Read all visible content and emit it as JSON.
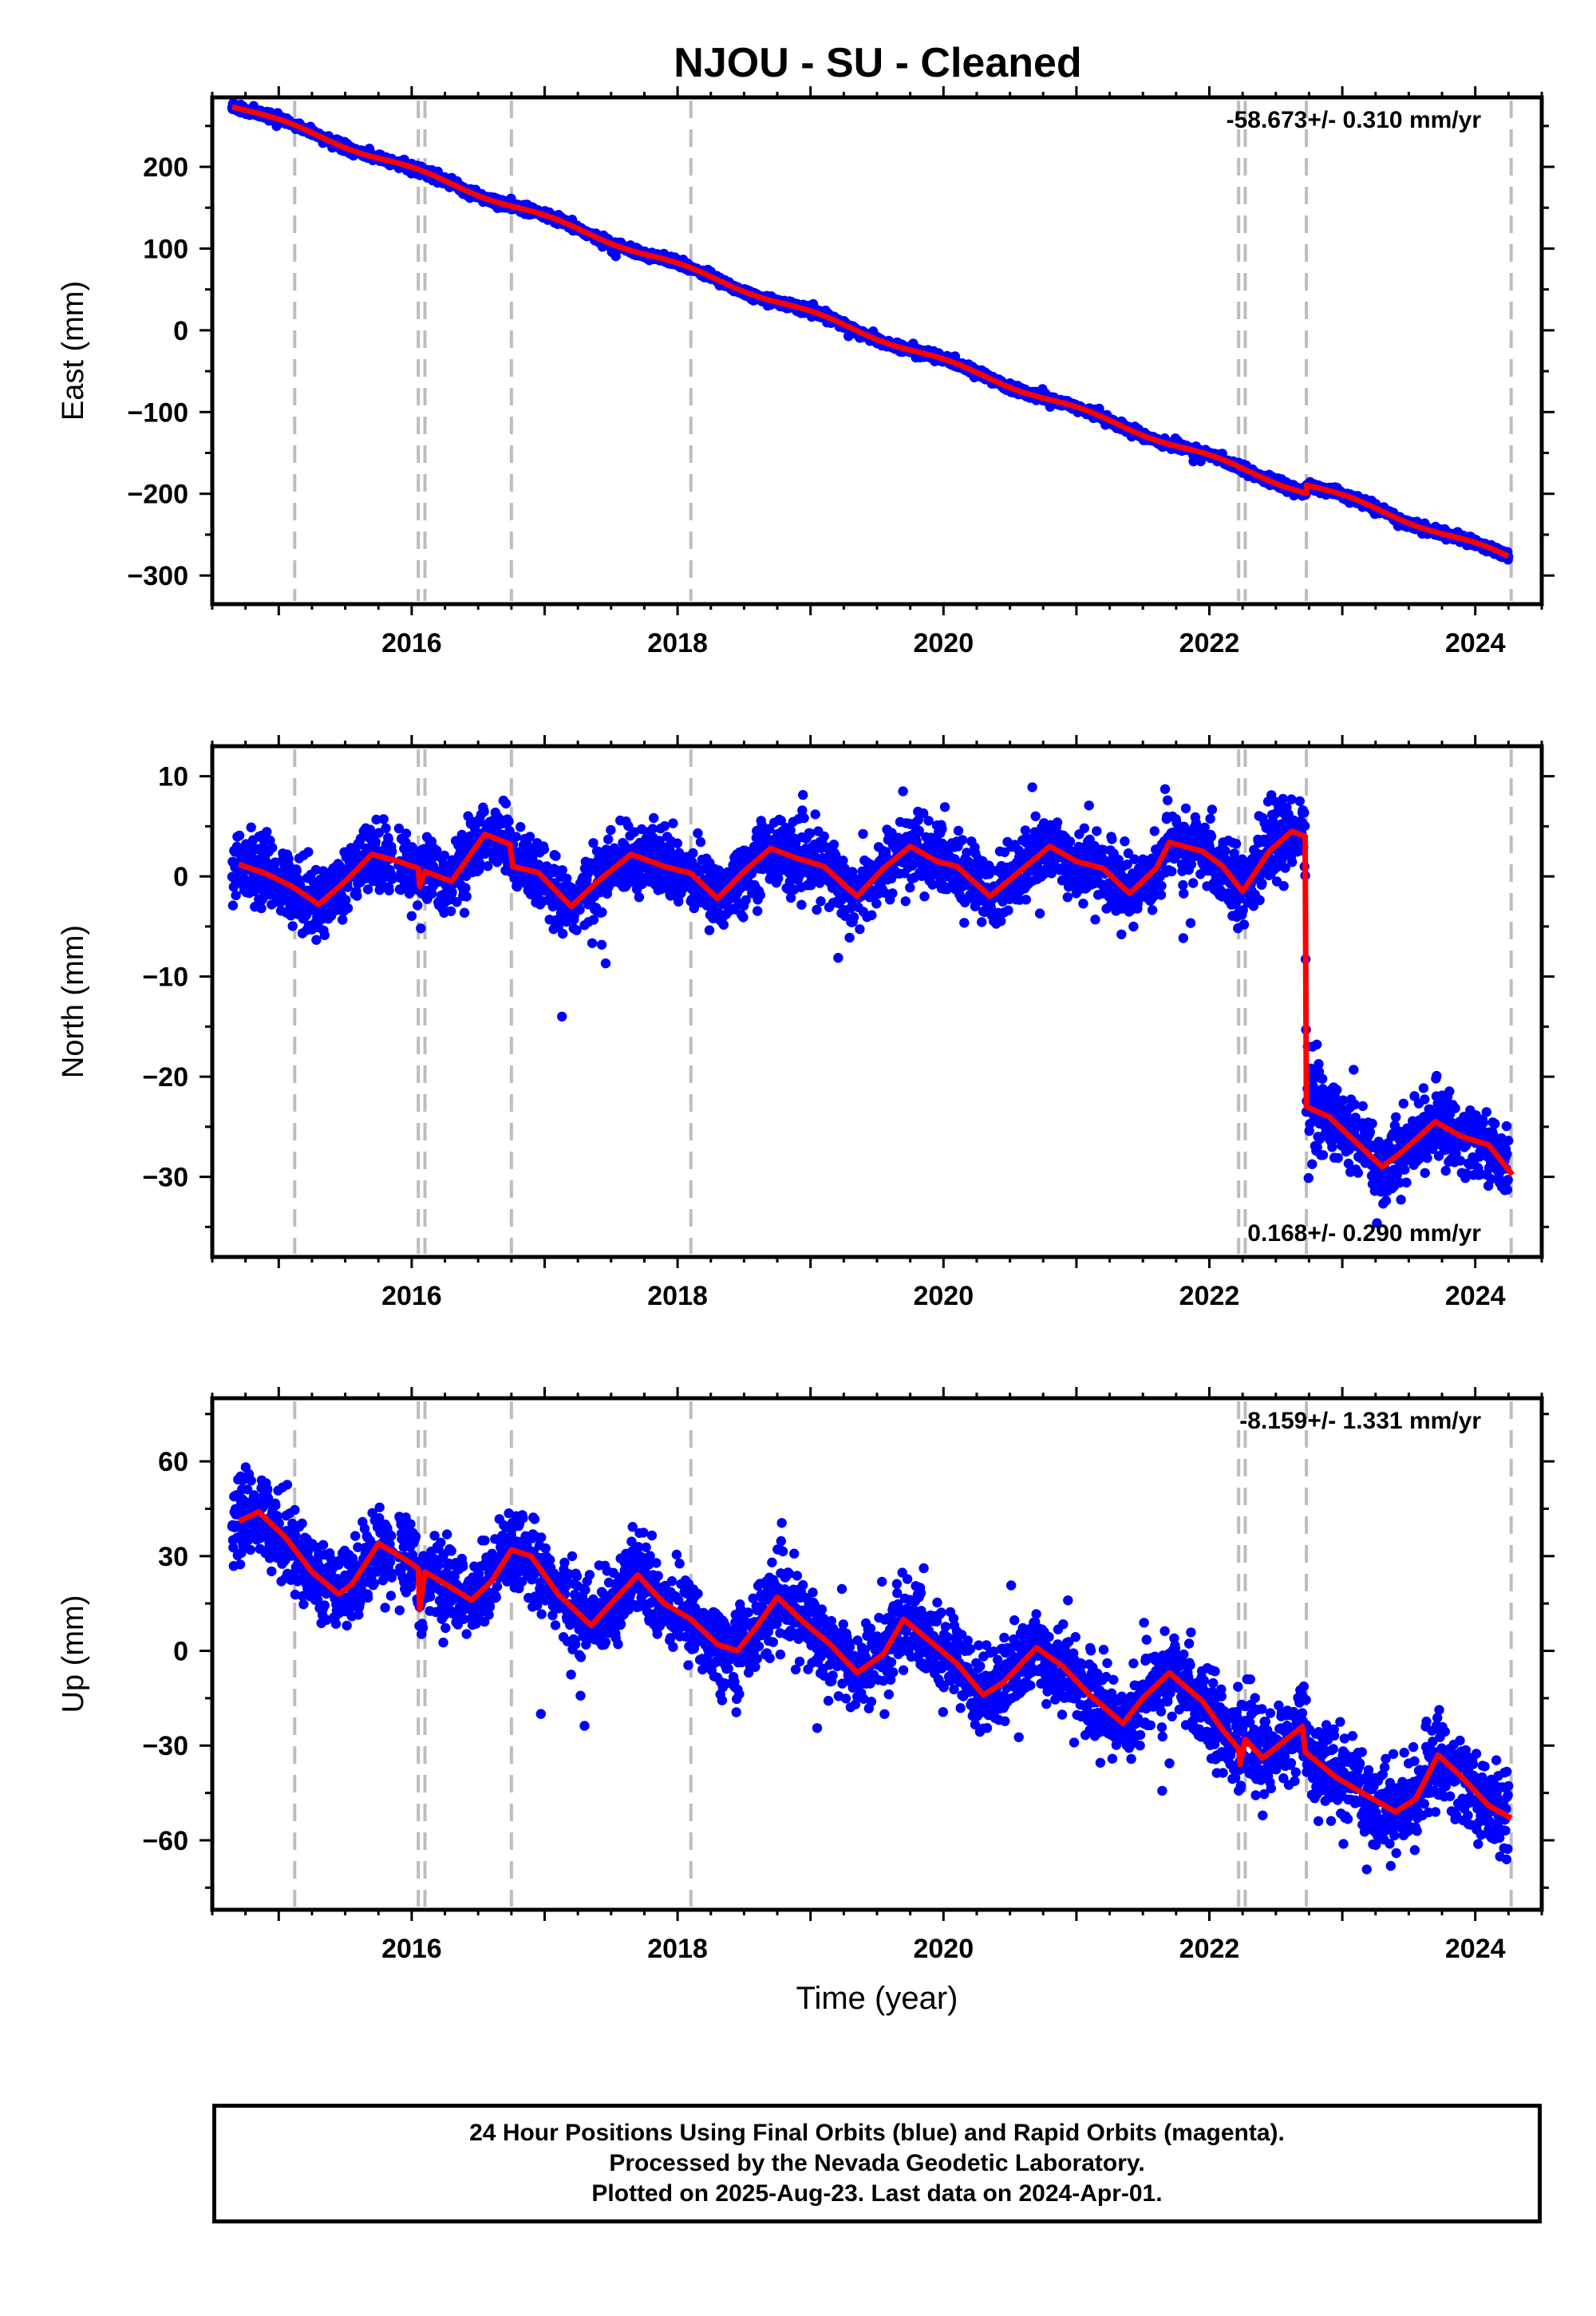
{
  "title": "NJOU  - SU - Cleaned",
  "colors": {
    "data": "#0000ff",
    "model": "#ff0000",
    "steps": "#bdbdbd",
    "rapid": "#ff00ff"
  },
  "chart_data": [
    {
      "type": "scatter",
      "panel": "east",
      "ylabel": "East (mm)",
      "xlabel": "",
      "xlim": [
        2014.5,
        2024.5
      ],
      "ylim": [
        -335,
        285
      ],
      "yticks": [
        -300,
        -200,
        -100,
        0,
        100,
        200
      ],
      "yminor": 50,
      "xticks": [
        2016,
        2018,
        2020,
        2022,
        2024
      ],
      "rate_text": "-58.673+/- 0.310 mm/yr",
      "rate_position": "top-right",
      "step_epochs": [
        2015.12,
        2016.05,
        2016.1,
        2016.75,
        2018.1,
        2022.22,
        2022.27,
        2022.73,
        2024.27
      ],
      "model": {
        "trend_origin": 2014.65,
        "start": 276,
        "rate": -58.673,
        "seasonal": 3,
        "offsets": [
          {
            "t": 2022.73,
            "dy": 10
          }
        ],
        "scatter_sigma": 2.5
      },
      "series": [
        {
          "name": "24 Hour Positions Using Final Orbits (blue)",
          "kind": "points"
        },
        {
          "name": "",
          "kind": "model_line"
        }
      ]
    },
    {
      "type": "scatter",
      "panel": "north",
      "ylabel": "North (mm)",
      "xlabel": "",
      "xlim": [
        2014.5,
        2024.5
      ],
      "ylim": [
        -38,
        13
      ],
      "yticks": [
        -30,
        -20,
        -10,
        0,
        10
      ],
      "yminor": 5,
      "xticks": [
        2016,
        2018,
        2020,
        2022,
        2024
      ],
      "rate_text": "0.168+/- 0.290 mm/yr",
      "rate_position": "bottom-right",
      "step_epochs": [
        2015.12,
        2016.05,
        2016.1,
        2016.75,
        2018.1,
        2022.22,
        2022.27,
        2022.73,
        2024.27
      ],
      "model_points": [
        [
          2014.7,
          1.2
        ],
        [
          2014.9,
          0.3
        ],
        [
          2015.1,
          -1.0
        ],
        [
          2015.3,
          -2.8
        ],
        [
          2015.5,
          -0.5
        ],
        [
          2015.7,
          2.2
        ],
        [
          2015.9,
          1.5
        ],
        [
          2016.05,
          0.8
        ],
        [
          2016.06,
          -1.0
        ],
        [
          2016.1,
          0.5
        ],
        [
          2016.3,
          -0.5
        ],
        [
          2016.55,
          4.2
        ],
        [
          2016.74,
          3.2
        ],
        [
          2016.76,
          1.0
        ],
        [
          2016.95,
          0.4
        ],
        [
          2017.2,
          -3.0
        ],
        [
          2017.4,
          -0.5
        ],
        [
          2017.65,
          2.2
        ],
        [
          2017.9,
          1.0
        ],
        [
          2018.1,
          0.3
        ],
        [
          2018.3,
          -2.2
        ],
        [
          2018.5,
          0.5
        ],
        [
          2018.7,
          2.8
        ],
        [
          2018.9,
          1.8
        ],
        [
          2019.1,
          1.0
        ],
        [
          2019.35,
          -2.0
        ],
        [
          2019.55,
          0.8
        ],
        [
          2019.75,
          3.0
        ],
        [
          2019.95,
          1.5
        ],
        [
          2020.1,
          1.0
        ],
        [
          2020.35,
          -2.0
        ],
        [
          2020.6,
          0.8
        ],
        [
          2020.8,
          3.0
        ],
        [
          2021.0,
          1.5
        ],
        [
          2021.2,
          0.8
        ],
        [
          2021.4,
          -1.7
        ],
        [
          2021.6,
          0.8
        ],
        [
          2021.7,
          3.4
        ],
        [
          2021.95,
          2.5
        ],
        [
          2022.1,
          1.0
        ],
        [
          2022.25,
          -1.5
        ],
        [
          2022.45,
          2.5
        ],
        [
          2022.62,
          4.5
        ],
        [
          2022.72,
          4.0
        ],
        [
          2022.73,
          -23.0
        ],
        [
          2022.9,
          -24.0
        ],
        [
          2023.1,
          -26.5
        ],
        [
          2023.3,
          -29.0
        ],
        [
          2023.45,
          -27.5
        ],
        [
          2023.7,
          -24.5
        ],
        [
          2023.9,
          -26.0
        ],
        [
          2024.1,
          -26.8
        ],
        [
          2024.28,
          -29.8
        ]
      ],
      "scatter_sigma": 1.7,
      "series": [
        {
          "name": "24 Hour Positions Using Final Orbits (blue)",
          "kind": "points"
        },
        {
          "name": "",
          "kind": "model_line"
        }
      ]
    },
    {
      "type": "scatter",
      "panel": "up",
      "ylabel": "Up (mm)",
      "xlabel": "Time (year)",
      "xlim": [
        2014.5,
        2024.5
      ],
      "ylim": [
        -82,
        80
      ],
      "yticks": [
        -60,
        -30,
        0,
        30,
        60
      ],
      "yminor": 15,
      "xticks": [
        2016,
        2018,
        2020,
        2022,
        2024
      ],
      "rate_text": "-8.159+/- 1.331 mm/yr",
      "rate_position": "top-right",
      "step_epochs": [
        2015.12,
        2016.05,
        2016.1,
        2016.75,
        2018.1,
        2022.22,
        2022.27,
        2022.73,
        2024.27
      ],
      "model_points": [
        [
          2014.7,
          41
        ],
        [
          2014.85,
          44
        ],
        [
          2015.05,
          36
        ],
        [
          2015.25,
          25
        ],
        [
          2015.45,
          18
        ],
        [
          2015.55,
          21
        ],
        [
          2015.75,
          34
        ],
        [
          2015.95,
          29
        ],
        [
          2016.05,
          26
        ],
        [
          2016.06,
          13
        ],
        [
          2016.1,
          25
        ],
        [
          2016.3,
          20
        ],
        [
          2016.45,
          16
        ],
        [
          2016.6,
          22
        ],
        [
          2016.75,
          32
        ],
        [
          2016.9,
          30
        ],
        [
          2017.1,
          18
        ],
        [
          2017.35,
          8
        ],
        [
          2017.5,
          15
        ],
        [
          2017.7,
          24
        ],
        [
          2017.9,
          15
        ],
        [
          2018.1,
          10
        ],
        [
          2018.3,
          2
        ],
        [
          2018.45,
          0
        ],
        [
          2018.6,
          8
        ],
        [
          2018.75,
          17
        ],
        [
          2018.95,
          9
        ],
        [
          2019.15,
          2
        ],
        [
          2019.35,
          -7
        ],
        [
          2019.55,
          -1
        ],
        [
          2019.7,
          10
        ],
        [
          2019.9,
          3
        ],
        [
          2020.1,
          -4
        ],
        [
          2020.3,
          -14
        ],
        [
          2020.45,
          -10
        ],
        [
          2020.7,
          1
        ],
        [
          2020.9,
          -5
        ],
        [
          2021.1,
          -14
        ],
        [
          2021.35,
          -23
        ],
        [
          2021.5,
          -15
        ],
        [
          2021.7,
          -7
        ],
        [
          2021.95,
          -16
        ],
        [
          2022.1,
          -25
        ],
        [
          2022.22,
          -31
        ],
        [
          2022.23,
          -36
        ],
        [
          2022.27,
          -28
        ],
        [
          2022.4,
          -34
        ],
        [
          2022.55,
          -29
        ],
        [
          2022.7,
          -24
        ],
        [
          2022.72,
          -32
        ],
        [
          2022.95,
          -40
        ],
        [
          2023.15,
          -45
        ],
        [
          2023.4,
          -51
        ],
        [
          2023.55,
          -47
        ],
        [
          2023.72,
          -33
        ],
        [
          2023.9,
          -40
        ],
        [
          2024.1,
          -49
        ],
        [
          2024.27,
          -53
        ]
      ],
      "scatter_sigma": 6.5,
      "series": [
        {
          "name": "24 Hour Positions Using Final Orbits (blue)",
          "kind": "points"
        },
        {
          "name": "",
          "kind": "model_line"
        }
      ]
    }
  ],
  "footer": {
    "line1": "24 Hour Positions Using Final Orbits (blue) and Rapid Orbits (magenta).",
    "line2": "Processed by the Nevada Geodetic Laboratory.",
    "line3": "Plotted on 2025-Aug-23. Last data on 2024-Apr-01."
  }
}
